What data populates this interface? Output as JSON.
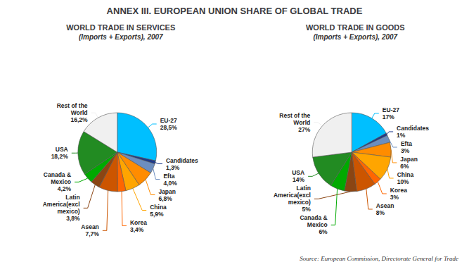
{
  "title": "ANNEX III. EUROPEAN UNION SHARE OF GLOBAL TRADE",
  "annotations": [
    "Source: European Commission, Directorate General for Trade"
  ],
  "chart_data": [
    {
      "type": "pie",
      "title": "WORLD TRADE IN SERVICES",
      "subtitle": "(Imports + Exports), 2007",
      "categories": [
        "EU-27",
        "Candidates",
        "Efta",
        "Japan",
        "China",
        "Korea",
        "Asean",
        "Latin\nAmerica(excl\nmexico)",
        "Canada &\nMexico",
        "USA",
        "Rest of the\nWorld"
      ],
      "values": [
        28.5,
        1.3,
        4.0,
        6.8,
        5.9,
        3.4,
        7.7,
        3.8,
        4.2,
        18.2,
        16.2
      ],
      "value_labels": [
        "28,5%",
        "1,3%",
        "4,0%",
        "6,8%",
        "5,9%",
        "3,4%",
        "7,7%",
        "3,8%",
        "4,2%",
        "18,2%",
        "16,2%"
      ],
      "colors": [
        "#00BFFF",
        "#1E3A8A",
        "#6C8EBF",
        "#FF8C00",
        "#FFA500",
        "#FF6600",
        "#CC5500",
        "#8B4513",
        "#00AA00",
        "#228B22",
        "#F0F0F0"
      ],
      "data_labels": true
    },
    {
      "type": "pie",
      "title": "WORLD TRADE IN GOODS",
      "subtitle": "(Imports + Exports), 2007",
      "categories": [
        "EU-27",
        "Candidates",
        "Efta",
        "Japan",
        "China",
        "Korea",
        "Asean",
        "Latin\nAmerica(excl\nmexico)",
        "Canada &\nMexico",
        "USA",
        "Rest of the\nWorld"
      ],
      "values": [
        17,
        1,
        3,
        6,
        10,
        3,
        8,
        5,
        6,
        14,
        27
      ],
      "value_labels": [
        "17%",
        "1%",
        "3%",
        "6%",
        "10%",
        "3%",
        "8%",
        "5%",
        "6%",
        "14%",
        "27%"
      ],
      "colors": [
        "#00BFFF",
        "#1E3A8A",
        "#6C8EBF",
        "#FF8C00",
        "#FFA500",
        "#FF6600",
        "#CC5500",
        "#8B4513",
        "#00AA00",
        "#228B22",
        "#F0F0F0"
      ],
      "data_labels": true
    }
  ]
}
